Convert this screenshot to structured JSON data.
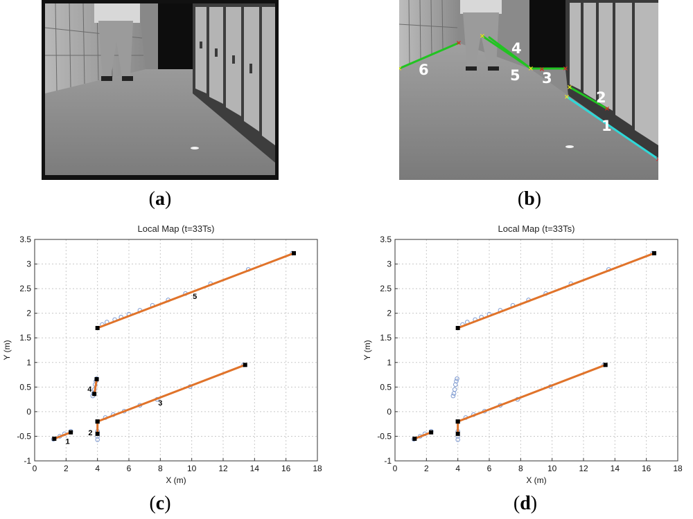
{
  "captions": {
    "a": "a",
    "b": "b",
    "c": "c",
    "d": "d"
  },
  "image_b_labels": [
    "1",
    "2",
    "3",
    "4",
    "5",
    "6"
  ],
  "colors": {
    "orange": "#e0732a",
    "green": "#22c322",
    "cyan": "#2fd8d8",
    "red": "#e02020",
    "yellow": "#f2e020",
    "circle": "#7e9ad0"
  },
  "chart_data": [
    {
      "panel": "c",
      "type": "scatter",
      "title": "Local Map (t=33Ts)",
      "xlabel": "X (m)",
      "ylabel": "Y (m)",
      "xlim": [
        0,
        18
      ],
      "ylim": [
        -1,
        3.5
      ],
      "xticks": [
        0,
        2,
        4,
        6,
        8,
        10,
        12,
        14,
        16,
        18
      ],
      "yticks": [
        -1,
        -0.5,
        0,
        0.5,
        1,
        1.5,
        2,
        2.5,
        3,
        3.5
      ],
      "grid": true,
      "segments": [
        {
          "label": "1",
          "x": [
            1.25,
            2.3
          ],
          "y": [
            -0.55,
            -0.42
          ],
          "label_at": [
            2.1,
            -0.6
          ]
        },
        {
          "label": "2",
          "x": [
            4.0,
            4.0
          ],
          "y": [
            -0.45,
            -0.2
          ],
          "label_at": [
            3.55,
            -0.42
          ]
        },
        {
          "label": "3",
          "x": [
            4.0,
            13.4
          ],
          "y": [
            -0.2,
            0.95
          ],
          "label_at": [
            8.0,
            0.18
          ]
        },
        {
          "label": "4",
          "x": [
            3.8,
            3.95
          ],
          "y": [
            0.36,
            0.66
          ],
          "label_at": [
            3.5,
            0.46
          ]
        },
        {
          "label": "5",
          "x": [
            4.0,
            16.5
          ],
          "y": [
            1.7,
            3.22
          ],
          "label_at": [
            10.2,
            2.35
          ]
        }
      ],
      "points": {
        "x": [
          4.3,
          4.6,
          5.1,
          5.5,
          6.0,
          6.7,
          7.5,
          8.5,
          9.6,
          11.2,
          13.6,
          16.4,
          4.5,
          5.0,
          5.7,
          6.7,
          7.8,
          9.9,
          13.3,
          3.7,
          3.75,
          3.8,
          3.85,
          3.9,
          3.95,
          4.0,
          4.0,
          4.0,
          1.2,
          1.6,
          1.9,
          2.3
        ],
        "y": [
          1.77,
          1.82,
          1.87,
          1.92,
          1.98,
          2.06,
          2.16,
          2.27,
          2.4,
          2.6,
          2.89,
          3.22,
          -0.12,
          -0.06,
          0.01,
          0.13,
          0.25,
          0.51,
          0.95,
          0.32,
          0.37,
          0.45,
          0.55,
          0.62,
          0.67,
          -0.4,
          -0.5,
          -0.57,
          -0.56,
          -0.5,
          -0.45,
          -0.4
        ]
      },
      "endpoints": {
        "x": [
          4.0,
          16.5,
          4.0,
          13.4,
          4.0,
          4.0,
          3.8,
          3.95,
          1.25,
          2.3
        ],
        "y": [
          1.7,
          3.22,
          -0.2,
          0.95,
          -0.45,
          -0.2,
          0.36,
          0.66,
          -0.55,
          -0.42
        ]
      }
    },
    {
      "panel": "d",
      "type": "scatter",
      "title": "Local Map (t=33Ts)",
      "xlabel": "X (m)",
      "ylabel": "Y (m)",
      "xlim": [
        0,
        18
      ],
      "ylim": [
        -1,
        3.5
      ],
      "xticks": [
        0,
        2,
        4,
        6,
        8,
        10,
        12,
        14,
        16,
        18
      ],
      "yticks": [
        -1,
        -0.5,
        0,
        0.5,
        1,
        1.5,
        2,
        2.5,
        3,
        3.5
      ],
      "grid": true,
      "segments": [
        {
          "label": "",
          "x": [
            1.25,
            2.3
          ],
          "y": [
            -0.55,
            -0.42
          ]
        },
        {
          "label": "",
          "x": [
            4.0,
            4.0
          ],
          "y": [
            -0.45,
            -0.2
          ]
        },
        {
          "label": "",
          "x": [
            4.0,
            13.4
          ],
          "y": [
            -0.2,
            0.95
          ]
        },
        {
          "label": "",
          "x": [
            4.0,
            16.5
          ],
          "y": [
            1.7,
            3.22
          ]
        }
      ],
      "points": {
        "x": [
          4.3,
          4.6,
          5.1,
          5.5,
          6.0,
          6.7,
          7.5,
          8.5,
          9.6,
          11.2,
          13.6,
          16.4,
          4.5,
          5.0,
          5.7,
          6.7,
          7.8,
          9.9,
          13.3,
          3.7,
          3.75,
          3.8,
          3.85,
          3.9,
          3.95,
          4.0,
          4.0,
          4.0,
          1.2,
          1.6,
          1.9,
          2.3
        ],
        "y": [
          1.77,
          1.82,
          1.87,
          1.92,
          1.98,
          2.06,
          2.16,
          2.27,
          2.4,
          2.6,
          2.89,
          3.22,
          -0.12,
          -0.06,
          0.01,
          0.13,
          0.25,
          0.51,
          0.95,
          0.32,
          0.37,
          0.45,
          0.55,
          0.62,
          0.67,
          -0.4,
          -0.5,
          -0.57,
          -0.56,
          -0.5,
          -0.45,
          -0.4
        ]
      },
      "endpoints": {
        "x": [
          4.0,
          16.5,
          4.0,
          13.4,
          4.0,
          4.0,
          1.25,
          2.3
        ],
        "y": [
          1.7,
          3.22,
          -0.2,
          0.95,
          -0.45,
          -0.2,
          -0.55,
          -0.42
        ]
      }
    }
  ]
}
